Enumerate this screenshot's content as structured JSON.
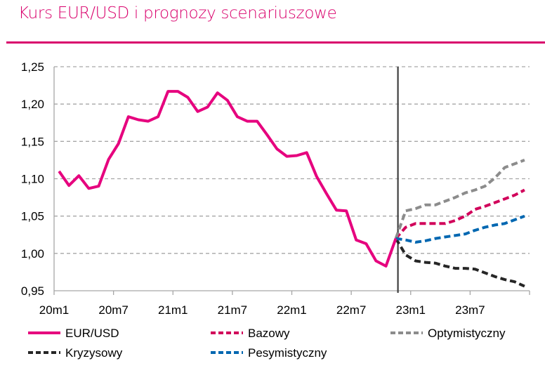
{
  "chart_data": {
    "type": "line",
    "title": "Kurs EUR/USD i prognozy scenariuszowe",
    "xlabel": "",
    "ylabel": "",
    "ylim": [
      0.95,
      1.25
    ],
    "yticks": [
      "1,25",
      "1,20",
      "1,15",
      "1,10",
      "1,05",
      "1,00",
      "0,95"
    ],
    "ytick_values": [
      1.25,
      1.2,
      1.15,
      1.1,
      1.05,
      1.0,
      0.95
    ],
    "xtick_labels": [
      "20m1",
      "20m7",
      "21m1",
      "21m7",
      "22m1",
      "22m7",
      "23m1",
      "23m7"
    ],
    "x_start": "20m1",
    "x_periods": 48,
    "grid": "horizontal dashed",
    "forecast_divider_index": 34,
    "legend_position": "bottom",
    "series": [
      {
        "name": "EUR/USD",
        "style": "solid",
        "color": "#e6007e",
        "start_index": 0,
        "values": [
          1.11,
          1.091,
          1.104,
          1.087,
          1.09,
          1.126,
          1.147,
          1.183,
          1.179,
          1.177,
          1.183,
          1.217,
          1.217,
          1.209,
          1.19,
          1.196,
          1.215,
          1.205,
          1.183,
          1.177,
          1.177,
          1.159,
          1.14,
          1.13,
          1.131,
          1.135,
          1.103,
          1.08,
          1.058,
          1.057,
          1.018,
          1.013,
          0.99,
          0.983,
          1.02
        ]
      },
      {
        "name": "Bazowy",
        "style": "dashed",
        "color": "#d1005a",
        "start_index": 34,
        "values": [
          1.02,
          1.035,
          1.04,
          1.04,
          1.04,
          1.04,
          1.044,
          1.05,
          1.059,
          1.063,
          1.068,
          1.073,
          1.078,
          1.085
        ]
      },
      {
        "name": "Optymistyczny",
        "style": "dashed",
        "color": "#8c8c8c",
        "start_index": 34,
        "values": [
          1.02,
          1.057,
          1.06,
          1.065,
          1.065,
          1.07,
          1.075,
          1.081,
          1.085,
          1.09,
          1.101,
          1.115,
          1.12,
          1.125
        ]
      },
      {
        "name": "Kryzysowy",
        "style": "dashed",
        "color": "#262626",
        "start_index": 34,
        "values": [
          1.02,
          0.998,
          0.99,
          0.988,
          0.987,
          0.983,
          0.98,
          0.98,
          0.979,
          0.974,
          0.969,
          0.965,
          0.962,
          0.956
        ]
      },
      {
        "name": "Pesymistyczny",
        "style": "dashed",
        "color": "#0067b1",
        "start_index": 34,
        "values": [
          1.02,
          1.018,
          1.015,
          1.017,
          1.02,
          1.022,
          1.024,
          1.026,
          1.031,
          1.035,
          1.038,
          1.04,
          1.045,
          1.05
        ]
      }
    ]
  }
}
